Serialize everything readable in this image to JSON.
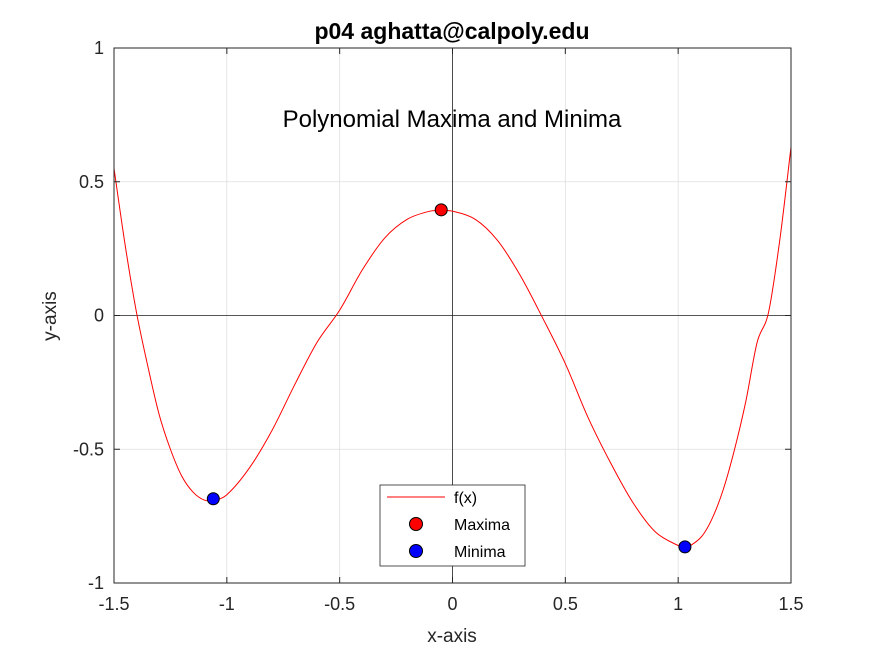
{
  "chart_data": {
    "type": "line",
    "title": "p04 aghatta@calpoly.edu",
    "annotation": "Polynomial Maxima and Minima",
    "xlabel": "x-axis",
    "ylabel": "y-axis",
    "xlim": [
      -1.5,
      1.5
    ],
    "ylim": [
      -1,
      1
    ],
    "xticks": [
      -1.5,
      -1,
      -0.5,
      0,
      0.5,
      1,
      1.5
    ],
    "xtick_labels": [
      "-1.5",
      "-1",
      "-0.5",
      "0",
      "0.5",
      "1",
      "1.5"
    ],
    "yticks": [
      -1,
      -0.5,
      0,
      0.5,
      1
    ],
    "ytick_labels": [
      "-1",
      "-0.5",
      "0",
      "0.5",
      "1"
    ],
    "grid": true,
    "axis_lines_through_origin": true,
    "legend_position": "bottom-center",
    "series": [
      {
        "name": "f(x)",
        "kind": "line",
        "color": "#ff0000",
        "x": [
          -1.5,
          -1.45,
          -1.4,
          -1.35,
          -1.3,
          -1.25,
          -1.2,
          -1.15,
          -1.1,
          -1.06,
          -1.0,
          -0.9,
          -0.8,
          -0.7,
          -0.6,
          -0.5,
          -0.4,
          -0.3,
          -0.2,
          -0.1,
          -0.05,
          0.0,
          0.1,
          0.2,
          0.3,
          0.4,
          0.5,
          0.6,
          0.7,
          0.8,
          0.9,
          1.0,
          1.03,
          1.1,
          1.15,
          1.2,
          1.25,
          1.3,
          1.35,
          1.4,
          1.45,
          1.5
        ],
        "y": [
          0.55,
          0.26,
          0.01,
          -0.19,
          -0.37,
          -0.5,
          -0.6,
          -0.66,
          -0.69,
          -0.69,
          -0.67,
          -0.57,
          -0.43,
          -0.26,
          -0.1,
          0.02,
          0.17,
          0.29,
          0.36,
          0.39,
          0.39,
          0.39,
          0.36,
          0.28,
          0.15,
          -0.01,
          -0.18,
          -0.38,
          -0.55,
          -0.7,
          -0.81,
          -0.86,
          -0.87,
          -0.83,
          -0.76,
          -0.65,
          -0.5,
          -0.32,
          -0.1,
          0.01,
          0.28,
          0.63
        ]
      },
      {
        "name": "Maxima",
        "kind": "marker",
        "color": "#ff0000",
        "edge_color": "#000000",
        "x": [
          -0.05
        ],
        "y": [
          0.395
        ]
      },
      {
        "name": "Minima",
        "kind": "marker",
        "color": "#0000ff",
        "edge_color": "#000000",
        "x": [
          -1.06,
          1.03
        ],
        "y": [
          -0.685,
          -0.865
        ]
      }
    ]
  }
}
